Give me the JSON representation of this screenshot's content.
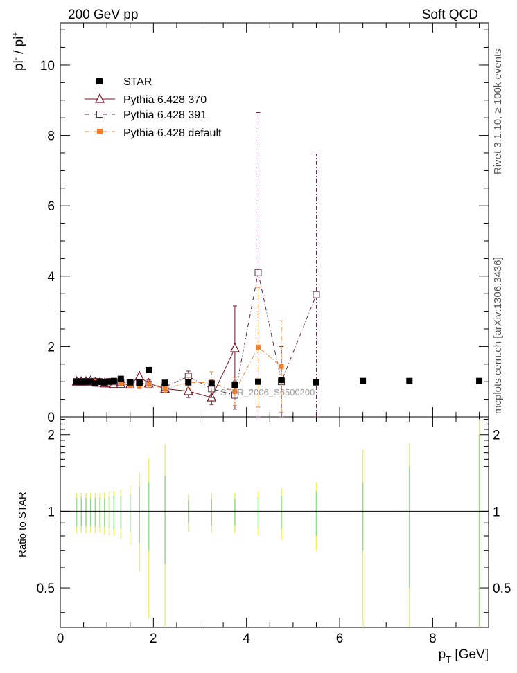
{
  "header": {
    "left": "200 GeV pp",
    "right": "Soft QCD"
  },
  "side_labels": {
    "rivet": "Rivet 3.1.10, ≥ 100k events",
    "mcplots": "mcplots.cern.ch [arXiv:1306.3436]"
  },
  "watermark": "STAR_2006_S6500200",
  "chart_data": [
    {
      "panel": "main",
      "type": "scatter",
      "ylabel_main": "pi",
      "ylabel_sup1": "-",
      "ylabel_mid": " / pi",
      "ylabel_sup2": "+",
      "xlim": [
        0,
        9.2
      ],
      "ylim": [
        0,
        11.2
      ],
      "yticks": [
        0,
        2,
        4,
        6,
        8,
        10
      ],
      "series": [
        {
          "name": "STAR",
          "color": "#000000",
          "marker": "filled-square",
          "x": [
            0.35,
            0.45,
            0.55,
            0.65,
            0.75,
            0.85,
            0.95,
            1.05,
            1.15,
            1.3,
            1.5,
            1.7,
            1.9,
            2.25,
            2.75,
            3.25,
            3.75,
            4.25,
            4.75,
            5.5,
            6.5,
            7.5,
            9.0
          ],
          "y": [
            1.0,
            1.0,
            1.0,
            1.0,
            0.95,
            1.0,
            0.98,
            1.0,
            1.02,
            1.08,
            0.98,
            0.97,
            1.33,
            0.97,
            0.98,
            0.95,
            0.91,
            1.0,
            1.05,
            0.98,
            1.02,
            1.02,
            1.02
          ]
        },
        {
          "name": "Pythia 6.428 370",
          "color": "#7b1126",
          "marker": "open-triangle",
          "x": [
            0.35,
            0.45,
            0.55,
            0.65,
            0.75,
            0.85,
            0.95,
            1.05,
            1.15,
            1.3,
            1.5,
            1.7,
            1.9,
            2.25,
            2.75,
            3.25,
            3.75
          ],
          "y": [
            1.0,
            1.0,
            1.0,
            1.02,
            0.98,
            0.97,
            0.95,
            0.95,
            0.93,
            0.93,
            0.92,
            1.15,
            0.95,
            0.8,
            0.73,
            0.55,
            1.95
          ],
          "yerr": [
            0.03,
            0.03,
            0.03,
            0.03,
            0.03,
            0.03,
            0.03,
            0.04,
            0.04,
            0.05,
            0.06,
            0.1,
            0.1,
            0.12,
            0.18,
            0.2,
            1.2
          ]
        },
        {
          "name": "Pythia 6.428 391",
          "color": "#5a2a45",
          "marker": "open-square",
          "x": [
            0.35,
            0.45,
            0.55,
            0.65,
            0.75,
            0.85,
            0.95,
            1.05,
            1.15,
            1.3,
            1.5,
            1.7,
            1.9,
            2.25,
            2.75,
            3.25,
            3.75,
            4.25,
            4.75,
            5.5
          ],
          "y": [
            1.0,
            1.0,
            1.0,
            1.0,
            1.0,
            1.0,
            0.98,
            1.0,
            1.0,
            0.98,
            0.97,
            0.97,
            0.92,
            0.85,
            1.15,
            0.8,
            0.62,
            4.1,
            1.0,
            3.47
          ],
          "yerr": [
            0.03,
            0.03,
            0.03,
            0.03,
            0.03,
            0.03,
            0.03,
            0.04,
            0.04,
            0.05,
            0.06,
            0.08,
            0.1,
            0.1,
            0.15,
            0.25,
            0.4,
            4.55,
            1.0,
            4.0
          ]
        },
        {
          "name": "Pythia 6.428 default",
          "color": "#f08030",
          "marker": "filled-square",
          "x": [
            0.35,
            0.45,
            0.55,
            0.65,
            0.75,
            0.85,
            0.95,
            1.05,
            1.15,
            1.3,
            1.5,
            1.7,
            1.9,
            2.25,
            2.75,
            3.25,
            3.75,
            4.25,
            4.75
          ],
          "y": [
            1.0,
            1.0,
            1.0,
            1.0,
            1.0,
            0.98,
            0.98,
            0.97,
            1.0,
            0.95,
            0.9,
            0.88,
            0.93,
            0.8,
            0.97,
            0.98,
            0.72,
            1.98,
            1.43
          ],
          "yerr": [
            0.03,
            0.03,
            0.03,
            0.03,
            0.03,
            0.03,
            0.03,
            0.04,
            0.04,
            0.05,
            0.06,
            0.08,
            0.1,
            0.1,
            0.15,
            0.3,
            0.4,
            1.7,
            1.3
          ]
        }
      ],
      "legend_position": "top-left"
    },
    {
      "panel": "ratio",
      "type": "scatter",
      "ylabel": "Ratio to STAR",
      "xlabel": "p",
      "xlabel_sub": "T",
      "xlabel_unit": " [GeV]",
      "xlim": [
        0,
        9.2
      ],
      "ylim": [
        0.35,
        2.35
      ],
      "log_y": true,
      "yticks": [
        0.5,
        1,
        2
      ],
      "xticks": [
        0,
        2,
        4,
        6,
        8
      ],
      "reference_line": 1,
      "band_colors": {
        "stat": "#90e090",
        "total": "#f0f060"
      },
      "x": [
        0.35,
        0.45,
        0.55,
        0.65,
        0.75,
        0.85,
        0.95,
        1.05,
        1.15,
        1.3,
        1.5,
        1.7,
        1.9,
        2.25,
        2.75,
        3.25,
        3.75,
        4.25,
        4.75,
        5.5,
        6.5,
        7.5,
        9.0
      ],
      "stat_err": [
        0.13,
        0.13,
        0.13,
        0.13,
        0.13,
        0.13,
        0.13,
        0.14,
        0.15,
        0.15,
        0.17,
        0.25,
        0.3,
        0.38,
        0.1,
        0.12,
        0.12,
        0.13,
        0.15,
        0.2,
        0.3,
        0.5,
        1.0
      ],
      "total_err": [
        0.18,
        0.18,
        0.18,
        0.18,
        0.18,
        0.18,
        0.19,
        0.2,
        0.2,
        0.22,
        0.26,
        0.42,
        0.62,
        0.83,
        0.17,
        0.18,
        0.18,
        0.2,
        0.23,
        0.3,
        0.75,
        0.85,
        1.3
      ]
    }
  ]
}
